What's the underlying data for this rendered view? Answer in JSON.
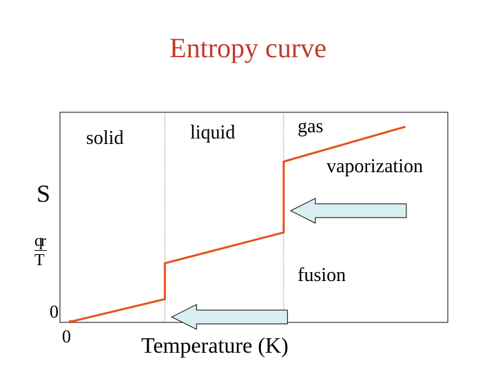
{
  "title": "Entropy curve",
  "chart_data": {
    "type": "line",
    "title": "Entropy curve",
    "xlabel": "Temperature (K)",
    "ylabel": "S",
    "ylabel_fraction": {
      "numerator": "qr",
      "denominator": "T"
    },
    "x_origin_label": "0",
    "y_origin_label": "0",
    "regions": [
      "solid",
      "liquid",
      "gas"
    ],
    "transitions": [
      {
        "name": "fusion",
        "arrow": "left"
      },
      {
        "name": "vaporization",
        "arrow": "left"
      }
    ],
    "line_color": "#e8501e",
    "arrow_fill": "#d9eef0",
    "curve": [
      {
        "x": 0.0,
        "y": 0.0
      },
      {
        "x": 0.4,
        "y": 0.11
      },
      {
        "x": 0.4,
        "y": 0.285
      },
      {
        "x": 0.904,
        "y": 0.435
      },
      {
        "x": 0.904,
        "y": 0.78
      },
      {
        "x": 1.42,
        "y": 0.95
      }
    ],
    "xlim": [
      -0.045,
      1.6
    ],
    "ylim": [
      0,
      1.02
    ],
    "grid": false,
    "legend": "none"
  },
  "colors": {
    "title": "#c0392b",
    "axis": "#000000",
    "divider": "#7f7f7f"
  }
}
